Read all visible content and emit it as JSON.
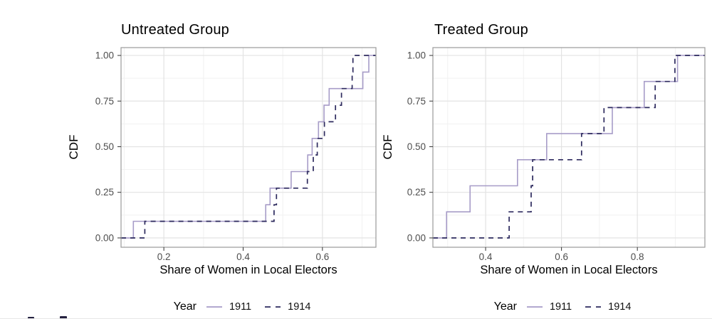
{
  "figure": {
    "background": "#ffffff",
    "artifacts": {
      "description": "tops of two cut-off glyphs along the bottom-left edge and a faint horizontal rule at the very bottom of the crop"
    }
  },
  "colors": {
    "line_1911": "#A79CC8",
    "line_1914": "#2D2A5E",
    "grid_major": "#E3E3E3",
    "grid_minor": "#F1F1F1",
    "panel_border": "#9A9A9A",
    "tick_mark": "#333333",
    "tick_label": "#4D4D4D",
    "text": "#000000"
  },
  "legend": {
    "title": "Year",
    "items": [
      {
        "label": "1911",
        "style": "solid"
      },
      {
        "label": "1914",
        "style": "dashed"
      }
    ]
  },
  "chart_data": [
    {
      "type": "line",
      "subtype": "ecdf-step",
      "title": "Untreated Group",
      "xlabel": "Share of Women in Local Electors",
      "ylabel": "CDF",
      "x_ticks": [
        0.2,
        0.4,
        0.6
      ],
      "x_tick_labels": [
        "0.2",
        "0.4",
        "0.6"
      ],
      "y_ticks": [
        0,
        0.25,
        0.5,
        0.75,
        1
      ],
      "y_tick_labels": [
        "0.00",
        "0.25",
        "0.50",
        "0.75",
        "1.00"
      ],
      "xlim": [
        0.092,
        0.735
      ],
      "ylim": [
        -0.051,
        1.043
      ],
      "grid": true,
      "legend_position": "bottom",
      "n_obs": 11,
      "series": [
        {
          "name": "1911",
          "linetype": "solid",
          "values": [
            0.123,
            0.457,
            0.468,
            0.521,
            0.563,
            0.574,
            0.59,
            0.604,
            0.617,
            0.702,
            0.717
          ]
        },
        {
          "name": "1914",
          "linetype": "dashed",
          "values": [
            0.152,
            0.478,
            0.484,
            0.562,
            0.577,
            0.587,
            0.605,
            0.633,
            0.648,
            0.675,
            0.677
          ]
        }
      ]
    },
    {
      "type": "line",
      "subtype": "ecdf-step",
      "title": "Treated Group",
      "xlabel": "Share of Women in Local Electors",
      "ylabel": "CDF",
      "x_ticks": [
        0.4,
        0.6,
        0.8
      ],
      "x_tick_labels": [
        "0.4",
        "0.6",
        "0.8"
      ],
      "y_ticks": [
        0,
        0.25,
        0.5,
        0.75,
        1
      ],
      "y_tick_labels": [
        "0.00",
        "0.25",
        "0.50",
        "0.75",
        "1.00"
      ],
      "xlim": [
        0.261,
        0.978
      ],
      "ylim": [
        -0.051,
        1.043
      ],
      "grid": true,
      "legend_position": "bottom",
      "n_obs": 7,
      "series": [
        {
          "name": "1911",
          "linetype": "solid",
          "values": [
            0.297,
            0.359,
            0.484,
            0.561,
            0.734,
            0.818,
            0.906
          ]
        },
        {
          "name": "1914",
          "linetype": "dashed",
          "values": [
            0.462,
            0.52,
            0.524,
            0.653,
            0.712,
            0.847,
            0.899
          ]
        }
      ]
    }
  ]
}
